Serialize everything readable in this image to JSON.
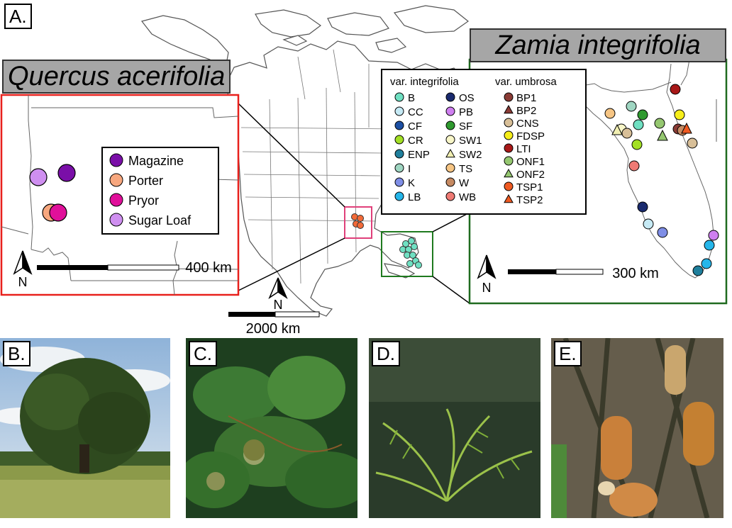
{
  "panel_labels": {
    "a": "A.",
    "b": "B.",
    "c": "C.",
    "d": "D.",
    "e": "E."
  },
  "titles": {
    "quercus": "Quercus acerifolia",
    "zamia": "Zamia integrifolia"
  },
  "scale_bars": {
    "quercus": "400 km",
    "main": "2000 km",
    "zamia": "300 km"
  },
  "north_label": "N",
  "quercus_legend": [
    {
      "label": "Magazine",
      "color": "#7a0fa8"
    },
    {
      "label": "Porter",
      "color": "#f7a77e"
    },
    {
      "label": "Pryor",
      "color": "#e0109a"
    },
    {
      "label": "Sugar Loaf",
      "color": "#cf8ff0"
    }
  ],
  "zamia_legend": {
    "integrifolia_header": "var. integrifolia",
    "umbrosa_header": "var. umbrosa",
    "integrifolia": [
      {
        "label": "B",
        "color": "#6fe0c2",
        "shape": "circle"
      },
      {
        "label": "CC",
        "color": "#c6eaf5",
        "shape": "circle"
      },
      {
        "label": "CF",
        "color": "#1c4fa3",
        "shape": "circle"
      },
      {
        "label": "CR",
        "color": "#a3e025",
        "shape": "circle"
      },
      {
        "label": "ENP",
        "color": "#1f7f9c",
        "shape": "circle"
      },
      {
        "label": "I",
        "color": "#9fd6c2",
        "shape": "circle"
      },
      {
        "label": "K",
        "color": "#7f8ee6",
        "shape": "circle"
      },
      {
        "label": "LB",
        "color": "#25b6ea",
        "shape": "circle"
      },
      {
        "label": "OS",
        "color": "#1a2a6e",
        "shape": "circle"
      },
      {
        "label": "PB",
        "color": "#cf7ff0",
        "shape": "circle"
      },
      {
        "label": "SF",
        "color": "#2f9a2f",
        "shape": "circle"
      },
      {
        "label": "SW1",
        "color": "#f8f6c8",
        "shape": "circle"
      },
      {
        "label": "SW2",
        "color": "#f1efb2",
        "shape": "triangle"
      },
      {
        "label": "TS",
        "color": "#f6c584",
        "shape": "circle"
      },
      {
        "label": "W",
        "color": "#c68a62",
        "shape": "circle"
      },
      {
        "label": "WB",
        "color": "#ef7a74",
        "shape": "circle"
      }
    ],
    "umbrosa": [
      {
        "label": "BP1",
        "color": "#8a3b35",
        "shape": "circle"
      },
      {
        "label": "BP2",
        "color": "#8a3b35",
        "shape": "triangle"
      },
      {
        "label": "CNS",
        "color": "#d8bf98",
        "shape": "circle"
      },
      {
        "label": "FDSP",
        "color": "#f6ee1a",
        "shape": "circle"
      },
      {
        "label": "LTI",
        "color": "#a81818",
        "shape": "circle"
      },
      {
        "label": "ONF1",
        "color": "#95c770",
        "shape": "circle"
      },
      {
        "label": "ONF2",
        "color": "#95c770",
        "shape": "triangle"
      },
      {
        "label": "TSP1",
        "color": "#ef5a22",
        "shape": "circle"
      },
      {
        "label": "TSP2",
        "color": "#ef5a22",
        "shape": "triangle"
      }
    ]
  },
  "colors": {
    "quercus_frame": "#e8201c",
    "zamia_frame": "#1f6b1f",
    "quercus_site_box": "#e0407a",
    "zamia_site_box": "#1f7a1f"
  }
}
